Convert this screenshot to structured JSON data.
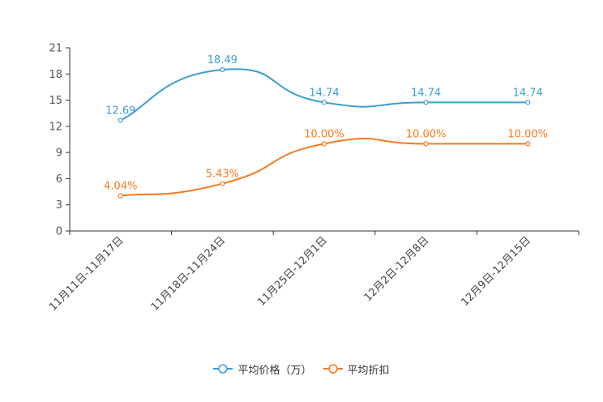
{
  "chart_data": {
    "type": "line",
    "title": "",
    "categories": [
      "11月11日-11月17日",
      "11月18日-11月24日",
      "11月25日-12月1日",
      "12月2日-12月8日",
      "12月9日-12月15日"
    ],
    "ylim": [
      0,
      21
    ],
    "yticks": [
      0,
      3,
      6,
      9,
      12,
      15,
      18,
      21
    ],
    "series": [
      {
        "name": "平均价格（万）",
        "color": "#3b9ed1",
        "values": [
          12.69,
          18.49,
          14.74,
          14.74,
          14.74
        ],
        "labels": [
          "12.69",
          "18.49",
          "14.74",
          "14.74",
          "14.74"
        ]
      },
      {
        "name": "平均折扣",
        "color": "#f57a1f",
        "values": [
          4.04,
          5.43,
          10.0,
          10.0,
          10.0
        ],
        "labels": [
          "4.04%",
          "5.43%",
          "10.00%",
          "10.00%",
          "10.00%"
        ]
      }
    ],
    "legend_position": "bottom-center"
  }
}
